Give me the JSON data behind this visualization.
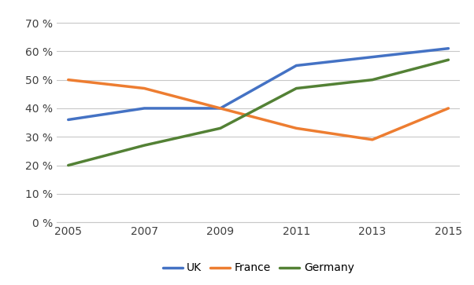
{
  "years": [
    2005,
    2007,
    2009,
    2011,
    2013,
    2015
  ],
  "UK": [
    0.36,
    0.4,
    0.4,
    0.55,
    0.58,
    0.61
  ],
  "France": [
    0.5,
    0.47,
    0.4,
    0.33,
    0.29,
    0.4
  ],
  "Germany": [
    0.2,
    0.27,
    0.33,
    0.47,
    0.5,
    0.57
  ],
  "colors": {
    "UK": "#4472C4",
    "France": "#ED7D31",
    "Germany": "#538135"
  },
  "ylim": [
    0,
    0.75
  ],
  "yticks": [
    0.0,
    0.1,
    0.2,
    0.3,
    0.4,
    0.5,
    0.6,
    0.7
  ],
  "xticks": [
    2005,
    2007,
    2009,
    2011,
    2013,
    2015
  ],
  "legend_labels": [
    "UK",
    "France",
    "Germany"
  ],
  "background_color": "#FFFFFF",
  "grid_color": "#C8C8C8",
  "line_width": 2.5
}
